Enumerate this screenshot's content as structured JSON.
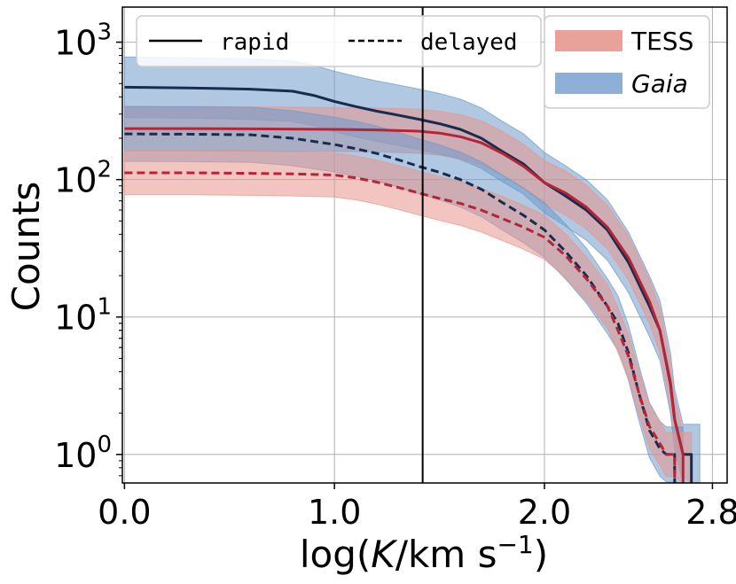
{
  "chart_data": {
    "type": "line",
    "xlabel_parts": [
      "log(",
      "K",
      "/km s",
      "−1",
      ")"
    ],
    "ylabel": "Counts",
    "xlim": [
      -0.01,
      2.87
    ],
    "ylim": [
      0.62,
      1800
    ],
    "yscale": "log",
    "grid": true,
    "x_ticks": [
      {
        "value": 0.0,
        "label": "0.0"
      },
      {
        "value": 1.0,
        "label": "1.0"
      },
      {
        "value": 2.0,
        "label": "2.0"
      },
      {
        "value": 2.8,
        "label": "2.8"
      }
    ],
    "y_ticks": [
      {
        "value": 1,
        "base": "10",
        "exp": "0"
      },
      {
        "value": 10,
        "base": "10",
        "exp": "1"
      },
      {
        "value": 100,
        "base": "10",
        "exp": "2"
      },
      {
        "value": 1000,
        "base": "10",
        "exp": "3"
      }
    ],
    "vertical_line_x": 1.42,
    "legend_styles": [
      {
        "label": "rapid",
        "dash": "solid"
      },
      {
        "label": "delayed",
        "dash": "dashed"
      }
    ],
    "legend_surveys": [
      {
        "label": "TESS",
        "italic": false,
        "color": "#e8a29a"
      },
      {
        "label": "Gaia",
        "italic": true,
        "color": "#8fb0d6"
      }
    ],
    "series": [
      {
        "survey": "Gaia",
        "style": "rapid",
        "line_color": "#1a2c4e",
        "band_color": "#6f9ac8",
        "x": [
          0.0,
          0.3,
          0.6,
          0.8,
          0.9,
          1.0,
          1.1,
          1.2,
          1.3,
          1.4,
          1.5,
          1.6,
          1.7,
          1.8,
          1.9,
          2.0,
          2.1,
          2.2,
          2.3,
          2.4,
          2.5,
          2.55,
          2.6,
          2.62,
          2.66,
          2.7
        ],
        "y": [
          470,
          465,
          455,
          440,
          410,
          370,
          340,
          315,
          295,
          275,
          255,
          232,
          200,
          160,
          130,
          95,
          76,
          60,
          43,
          25,
          12,
          8,
          3.3,
          1.8,
          1,
          1
        ],
        "band": 0.22
      },
      {
        "survey": "TESS",
        "style": "rapid",
        "line_color": "#b4253a",
        "band_color": "#e8958e",
        "x": [
          0.0,
          0.3,
          0.6,
          1.0,
          1.2,
          1.4,
          1.5,
          1.6,
          1.7,
          1.8,
          1.9,
          2.0,
          2.1,
          2.2,
          2.3,
          2.4,
          2.5,
          2.55,
          2.6,
          2.62,
          2.66
        ],
        "y": [
          235,
          235,
          234,
          232,
          230,
          225,
          218,
          205,
          185,
          155,
          125,
          95,
          80,
          63,
          45,
          27,
          13,
          8,
          3.2,
          1.8,
          1
        ],
        "band": 0.16
      },
      {
        "survey": "Gaia",
        "style": "delayed",
        "line_color": "#1a2c4e",
        "band_color": "#6f9ac8",
        "x": [
          0.0,
          0.3,
          0.6,
          0.8,
          1.0,
          1.1,
          1.2,
          1.3,
          1.4,
          1.5,
          1.6,
          1.7,
          1.8,
          1.9,
          2.0,
          2.1,
          2.2,
          2.3,
          2.35,
          2.4,
          2.45,
          2.5,
          2.55,
          2.58,
          2.62
        ],
        "y": [
          215,
          214,
          212,
          200,
          180,
          168,
          155,
          140,
          125,
          113,
          100,
          85,
          68,
          55,
          43,
          30,
          20,
          12,
          9,
          5.5,
          2.8,
          1.5,
          1.1,
          1,
          1
        ],
        "band": 0.2
      },
      {
        "survey": "TESS",
        "style": "delayed",
        "line_color": "#b4253a",
        "band_color": "#e8958e",
        "x": [
          0.0,
          0.3,
          0.6,
          0.8,
          1.0,
          1.1,
          1.2,
          1.3,
          1.4,
          1.5,
          1.6,
          1.7,
          1.8,
          1.9,
          2.0,
          2.1,
          2.2,
          2.3,
          2.35,
          2.4,
          2.45,
          2.5,
          2.55,
          2.58,
          2.62
        ],
        "y": [
          112,
          112,
          111,
          110,
          108,
          103,
          96,
          88,
          80,
          73,
          67,
          60,
          52,
          45,
          38,
          28,
          19,
          12,
          8,
          5.2,
          2.8,
          1.6,
          1.2,
          1,
          1
        ],
        "band": 0.16
      }
    ]
  }
}
